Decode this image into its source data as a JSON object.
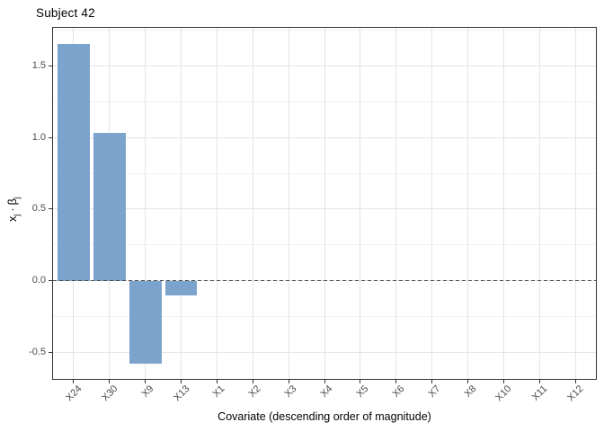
{
  "window": {
    "background": "#FFFFFF"
  },
  "chart_data": {
    "type": "bar",
    "title": "Subject 42",
    "xlabel": "Covariate (descending order of magnitude)",
    "ylabel": "x_j · β_j",
    "ylabel_parts": {
      "x": "x",
      "x_sub": "j",
      "dot": "·",
      "beta": "β",
      "beta_sub": "j"
    },
    "categories": [
      "X24",
      "X30",
      "X9",
      "X13",
      "X1",
      "X2",
      "X3",
      "X4",
      "X5",
      "X6",
      "X7",
      "X8",
      "X10",
      "X11",
      "X12"
    ],
    "values": [
      1.65,
      1.03,
      -0.58,
      -0.1,
      0,
      0,
      0,
      0,
      0,
      0,
      0,
      0,
      0,
      0,
      0
    ],
    "y_ticks": [
      -0.5,
      0.0,
      0.5,
      1.0,
      1.5
    ],
    "y_tick_labels": [
      "-0.5",
      "0.0",
      "0.5",
      "1.0",
      "1.5"
    ],
    "ylim": [
      -0.69,
      1.77
    ],
    "grid": {
      "show": true,
      "major_step": 0.5,
      "minor_step": 0.25
    },
    "zero_line": {
      "y": 0,
      "style": "dashed"
    },
    "legend": "none",
    "bar_width_fraction": 0.9,
    "colors": {
      "bar": "#7CA3CB",
      "panel_border": "#333333",
      "grid_major": "#E4E4E4",
      "grid_minor": "#F2F2F2",
      "zero_line": "#4A4A4A",
      "tick": "#333333",
      "tick_label": "#4D4D4D",
      "text": "#000000",
      "background": "#FFFFFF"
    }
  }
}
